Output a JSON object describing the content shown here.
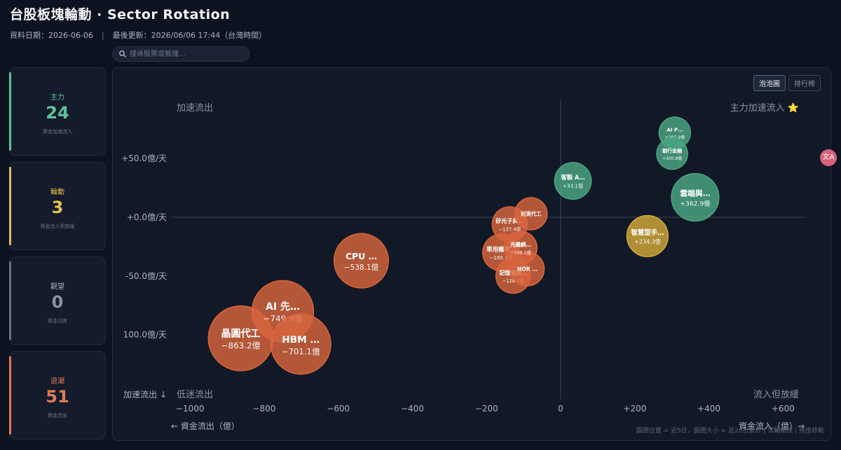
{
  "header": {
    "title": "台股板塊輪動 · Sector Rotation",
    "data_date": "資料日期：2026-06-06",
    "separator": "|",
    "last_update": "最後更新：2026/06/06 17:44（台灣時間）"
  },
  "search": {
    "placeholder": "搜尋股票或板塊..."
  },
  "summary_cards": [
    {
      "label": "主力",
      "count": "24",
      "sub": "資金加速流入",
      "color": "#5cc49a"
    },
    {
      "label": "輪動",
      "count": "3",
      "sub": "資金流入但放緩",
      "color": "#e6c04f"
    },
    {
      "label": "觀望",
      "count": "0",
      "sub": "資金沉寂",
      "color": "#8a93a3"
    },
    {
      "label": "退潮",
      "count": "51",
      "sub": "資金流出",
      "color": "#e07a52"
    }
  ],
  "view_toggle": {
    "bubble": "泡泡圖",
    "ranking": "排行榜"
  },
  "translate_badge": "文A",
  "chart_data": {
    "type": "scatter",
    "xlim": [
      -1000,
      650
    ],
    "ylim": [
      -118,
      90
    ],
    "xlabel_left": "← 資金流出（億）",
    "xlabel_right": "資金流入（億）→",
    "x_ticks": [
      "−1000",
      "−800",
      "−600",
      "−400",
      "−200",
      "0",
      "+200",
      "+400",
      "+600"
    ],
    "x_tick_values": [
      -1000,
      -800,
      -600,
      -400,
      -200,
      0,
      200,
      400,
      600
    ],
    "y_ticks": [
      "+50.0億/天",
      "+0.0億/天",
      "-50.0億/天",
      "100.0億/天"
    ],
    "y_tick_values": [
      50,
      0,
      -50,
      -100
    ],
    "y_axis_bottom_label": "加速流出 ↓",
    "quadrants": {
      "top_left": "加速流出",
      "top_right": "主力加速流入 ⭐",
      "bottom_left": "低迷流出",
      "bottom_right": "流入但放緩"
    },
    "footnote": "圓圈位置 = 近5日，圓圈大小 = 近20日累計 | 滾輪縮放 | 拖曳移動",
    "colors": {
      "inflow": "#4aa782",
      "slowing": "#d4aa3a",
      "outflow": "#d8653d"
    },
    "bubbles": [
      {
        "name": "晶圓代工",
        "value": "−863.2億",
        "x": -863.2,
        "y": -103,
        "size": 863.2,
        "group": "outflow"
      },
      {
        "name": "AI 先…",
        "value": "−749.9億",
        "x": -749.9,
        "y": -80,
        "size": 749.9,
        "group": "outflow"
      },
      {
        "name": "HBM …",
        "value": "−701.1億",
        "x": -701.1,
        "y": -108,
        "size": 701.1,
        "group": "outflow"
      },
      {
        "name": "CPU …",
        "value": "−538.1億",
        "x": -538.1,
        "y": -37,
        "size": 538.1,
        "group": "outflow"
      },
      {
        "name": "矽光子與…",
        "value": "−137.4億",
        "x": -137.4,
        "y": -6,
        "size": 137.4,
        "group": "outflow"
      },
      {
        "name": "封測代工",
        "value": "",
        "x": -80,
        "y": 3,
        "size": 100,
        "group": "outflow"
      },
      {
        "name": "車用機電…",
        "value": "−160.7億",
        "x": -160.7,
        "y": -30,
        "size": 160.7,
        "group": "outflow"
      },
      {
        "name": "光纖網…",
        "value": "−108.1億",
        "x": -108.1,
        "y": -26,
        "size": 108.1,
        "group": "outflow"
      },
      {
        "name": "NOR …",
        "value": "",
        "x": -90,
        "y": -44,
        "size": 120,
        "group": "outflow"
      },
      {
        "name": "記憶體模…",
        "value": "−128.2億",
        "x": -128.2,
        "y": -50,
        "size": 128.2,
        "group": "outflow"
      },
      {
        "name": "客製 A…",
        "value": "+33.1億",
        "x": 33.1,
        "y": 31,
        "size": 160,
        "group": "inflow"
      },
      {
        "name": "AI P…",
        "value": "+307.9億",
        "x": 307.9,
        "y": 72,
        "size": 90,
        "group": "inflow"
      },
      {
        "name": "銀行金融",
        "value": "+300.8億",
        "x": 300.8,
        "y": 54,
        "size": 85,
        "group": "inflow"
      },
      {
        "name": "雲端與…",
        "value": "+362.9億",
        "x": 362.9,
        "y": 17,
        "size": 362.9,
        "group": "inflow"
      },
      {
        "name": "智慧型手…",
        "value": "+234.3億",
        "x": 234.3,
        "y": -16,
        "size": 234.3,
        "group": "slowing"
      }
    ]
  }
}
